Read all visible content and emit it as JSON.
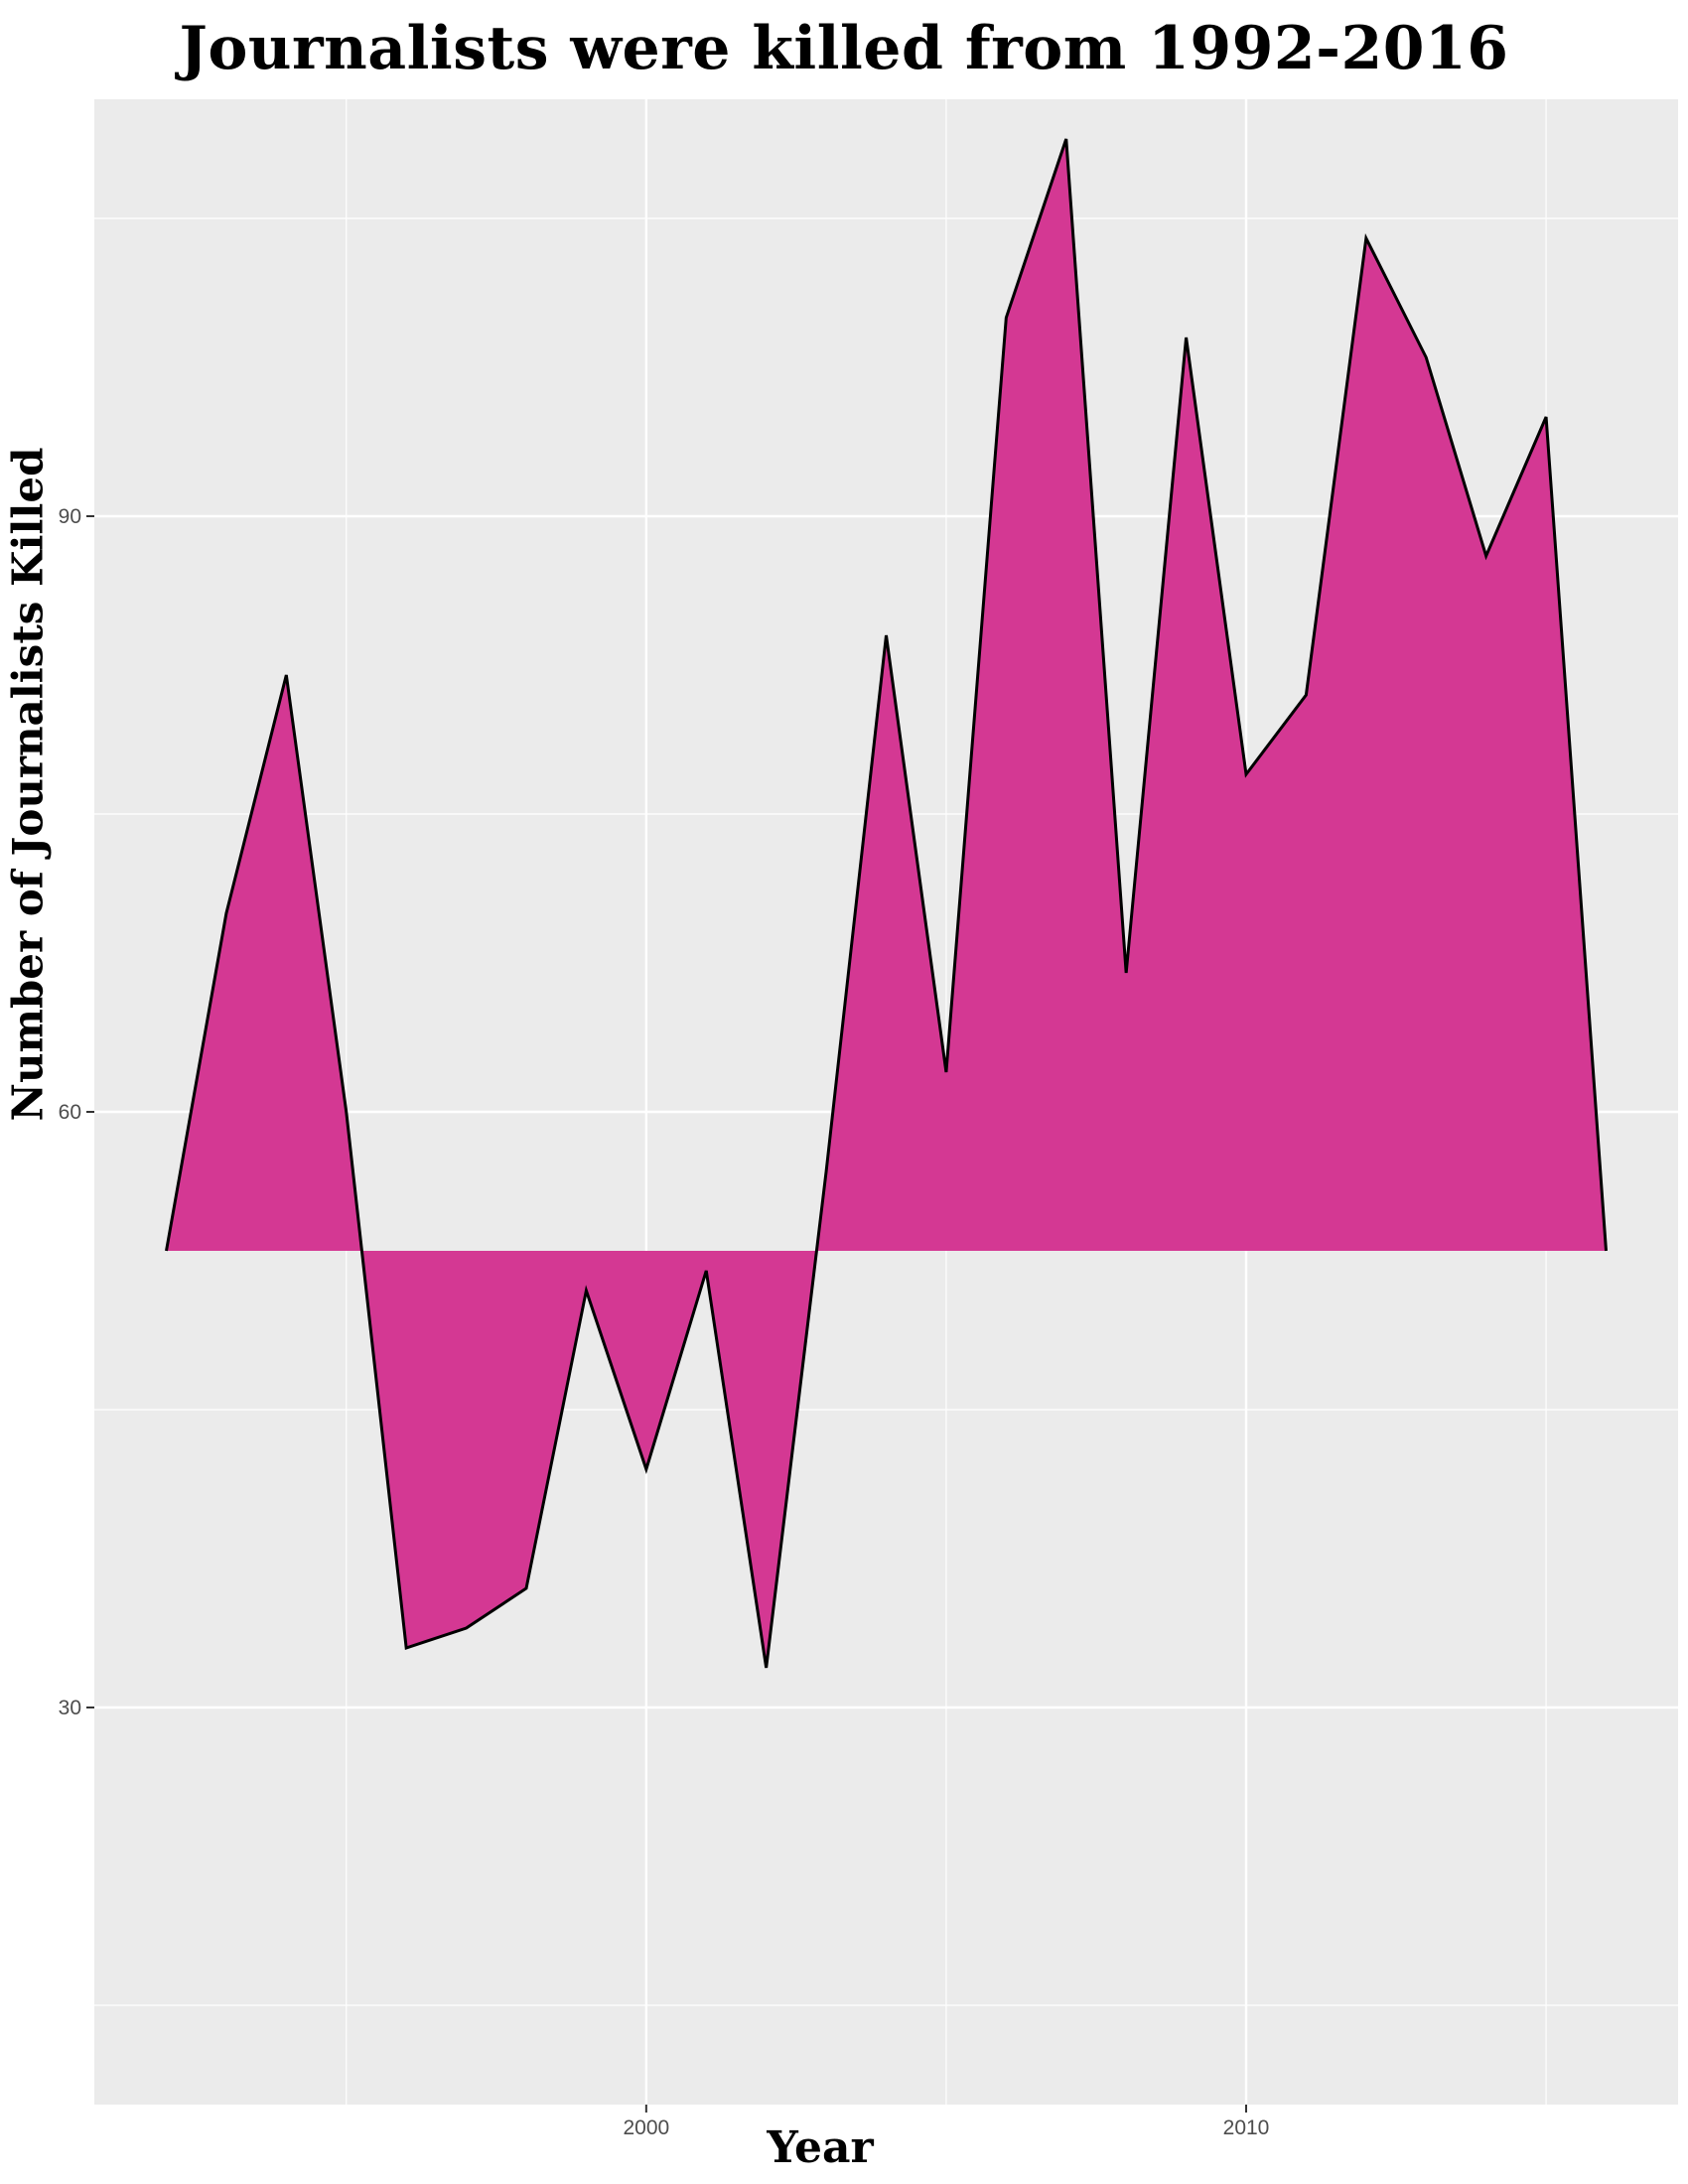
{
  "chart_data": {
    "type": "area",
    "title": "Journalists were killed from 1992-2016",
    "xlabel": "Year",
    "ylabel": "Number of Journalists Killed",
    "baseline": 53,
    "x": [
      1992,
      1993,
      1994,
      1995,
      1996,
      1997,
      1998,
      1999,
      2000,
      2001,
      2002,
      2003,
      2004,
      2005,
      2006,
      2007,
      2008,
      2009,
      2010,
      2011,
      2012,
      2013,
      2014,
      2015,
      2016
    ],
    "values": [
      53,
      70,
      82,
      60,
      33,
      34,
      36,
      51,
      42,
      52,
      32,
      57,
      84,
      62,
      100,
      109,
      67,
      99,
      77,
      81,
      104,
      98,
      88,
      95,
      53
    ],
    "xlim": [
      1990.8,
      2017.2
    ],
    "ylim": [
      10,
      111
    ],
    "x_ticks": [
      2000,
      2010
    ],
    "y_ticks": [
      30,
      60,
      90
    ],
    "x_tick_labels": [
      "2000",
      "2010"
    ],
    "y_tick_labels": [
      "30",
      "60",
      "90"
    ],
    "grid": true,
    "colors": {
      "fill": "#d43893",
      "line": "#000000",
      "panel": "#ebebeb",
      "grid": "#ffffff"
    }
  }
}
